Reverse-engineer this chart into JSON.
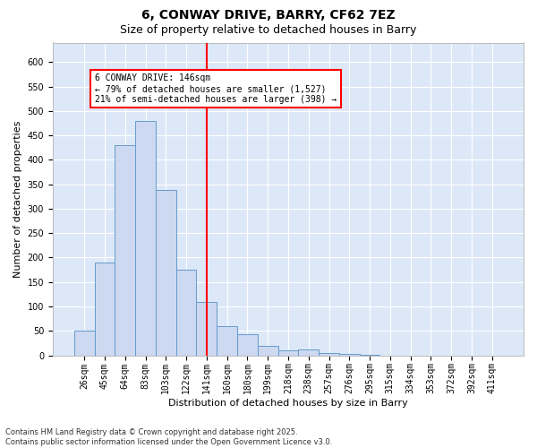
{
  "title1": "6, CONWAY DRIVE, BARRY, CF62 7EZ",
  "title2": "Size of property relative to detached houses in Barry",
  "xlabel": "Distribution of detached houses by size in Barry",
  "ylabel": "Number of detached properties",
  "categories": [
    "26sqm",
    "45sqm",
    "64sqm",
    "83sqm",
    "103sqm",
    "122sqm",
    "141sqm",
    "160sqm",
    "180sqm",
    "199sqm",
    "218sqm",
    "238sqm",
    "257sqm",
    "276sqm",
    "295sqm",
    "315sqm",
    "334sqm",
    "353sqm",
    "372sqm",
    "392sqm",
    "411sqm"
  ],
  "values": [
    50,
    190,
    430,
    480,
    338,
    175,
    110,
    60,
    43,
    20,
    10,
    12,
    5,
    2,
    1,
    0,
    0,
    0,
    0,
    0,
    0
  ],
  "bar_color": "#ccd9f0",
  "bar_edge_color": "#6699cc",
  "vline_x_idx": 6,
  "annotation_title": "6 CONWAY DRIVE: 146sqm",
  "annotation_line1": "← 79% of detached houses are smaller (1,527)",
  "annotation_line2": "21% of semi-detached houses are larger (398) →",
  "footer": "Contains HM Land Registry data © Crown copyright and database right 2025.\nContains public sector information licensed under the Open Government Licence v3.0.",
  "ylim_max": 640,
  "ytick_step": 50,
  "background_color": "#dce8f8",
  "grid_color": "#ffffff",
  "title_fontsize": 10,
  "subtitle_fontsize": 9,
  "axis_label_fontsize": 8,
  "tick_fontsize": 7,
  "footer_fontsize": 6,
  "ann_fontsize": 7
}
